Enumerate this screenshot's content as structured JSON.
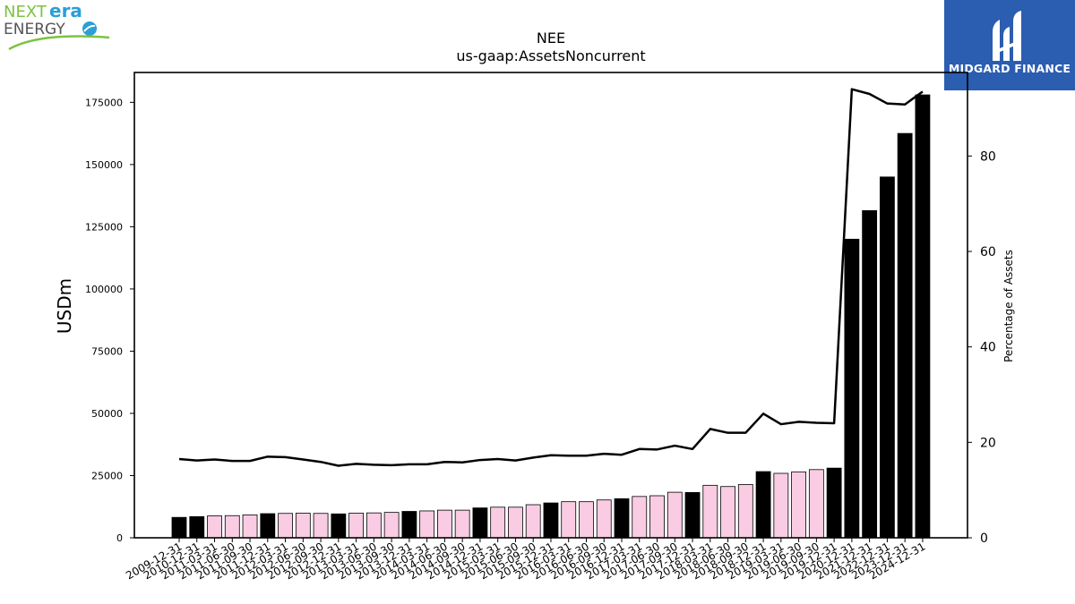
{
  "logos": {
    "left": {
      "name": "nextera-energy-logo",
      "line1a": "NEXT",
      "line1b": "era",
      "line2": "ENERGY",
      "color_green": "#7dc242",
      "color_blue": "#2a9fd8"
    },
    "right": {
      "name": "midgard-finance-logo",
      "text": "MIDGARD FINANCE",
      "bg": "#2b5db0"
    }
  },
  "chart_data": {
    "type": "bar",
    "title": "NEE",
    "subtitle": "us-gaap:AssetsNoncurrent",
    "ylabel": "USDm",
    "y2label": "Percentage of Assets",
    "ylim": [
      0,
      187000
    ],
    "y2lim": [
      0,
      97.5
    ],
    "yticks": [
      0,
      25000,
      50000,
      75000,
      100000,
      125000,
      150000,
      175000
    ],
    "y2ticks": [
      0,
      20,
      40,
      60,
      80
    ],
    "colors": {
      "annual_bar": "#000000",
      "quarterly_bar": "#f9cce3",
      "line": "#000000"
    },
    "categories": [
      "2009-12-31",
      "2010-12-31",
      "2011-03-31",
      "2011-06-30",
      "2011-09-30",
      "2011-12-31",
      "2012-03-31",
      "2012-06-30",
      "2012-09-30",
      "2012-12-31",
      "2013-03-31",
      "2013-06-30",
      "2013-09-30",
      "2013-12-31",
      "2014-03-31",
      "2014-06-30",
      "2014-09-30",
      "2014-12-31",
      "2015-03-31",
      "2015-06-30",
      "2015-09-30",
      "2015-12-31",
      "2016-03-31",
      "2016-06-30",
      "2016-09-30",
      "2016-12-31",
      "2017-03-31",
      "2017-06-30",
      "2017-09-30",
      "2017-12-31",
      "2018-03-31",
      "2018-06-30",
      "2018-09-30",
      "2018-12-31",
      "2019-03-31",
      "2019-06-30",
      "2019-09-30",
      "2019-12-31",
      "2020-12-31",
      "2021-12-31",
      "2022-12-31",
      "2023-12-31",
      "2024-12-31"
    ],
    "bar_kind": [
      "annual",
      "annual",
      "quarterly",
      "quarterly",
      "quarterly",
      "annual",
      "quarterly",
      "quarterly",
      "quarterly",
      "annual",
      "quarterly",
      "quarterly",
      "quarterly",
      "annual",
      "quarterly",
      "quarterly",
      "quarterly",
      "annual",
      "quarterly",
      "quarterly",
      "quarterly",
      "annual",
      "quarterly",
      "quarterly",
      "quarterly",
      "annual",
      "quarterly",
      "quarterly",
      "quarterly",
      "annual",
      "quarterly",
      "quarterly",
      "quarterly",
      "annual",
      "quarterly",
      "quarterly",
      "quarterly",
      "annual",
      "annual",
      "annual",
      "annual",
      "annual",
      "annual"
    ],
    "series": [
      {
        "name": "",
        "axis": "left",
        "kind": "bar",
        "values": [
          8200,
          8500,
          8800,
          8900,
          9200,
          9700,
          9800,
          9900,
          9800,
          9600,
          9900,
          10000,
          10200,
          10600,
          10800,
          11100,
          11100,
          12000,
          12300,
          12300,
          13300,
          14000,
          14500,
          14500,
          15200,
          15700,
          16600,
          16900,
          18300,
          18200,
          21100,
          20600,
          21400,
          26600,
          25900,
          26500,
          27400,
          28000,
          120000,
          131500,
          145000,
          162500,
          178000
        ]
      },
      {
        "name": "",
        "axis": "right",
        "kind": "line",
        "values": [
          16.5,
          16.2,
          16.4,
          16.1,
          16.1,
          17.0,
          16.9,
          16.4,
          15.9,
          15.1,
          15.5,
          15.3,
          15.2,
          15.4,
          15.4,
          15.9,
          15.8,
          16.3,
          16.5,
          16.2,
          16.8,
          17.3,
          17.2,
          17.2,
          17.6,
          17.4,
          18.6,
          18.5,
          19.3,
          18.6,
          22.8,
          22.0,
          22.0,
          26.0,
          23.8,
          24.3,
          24.1,
          24.0,
          94.0,
          93.0,
          91.0,
          90.8,
          93.5
        ]
      }
    ]
  }
}
